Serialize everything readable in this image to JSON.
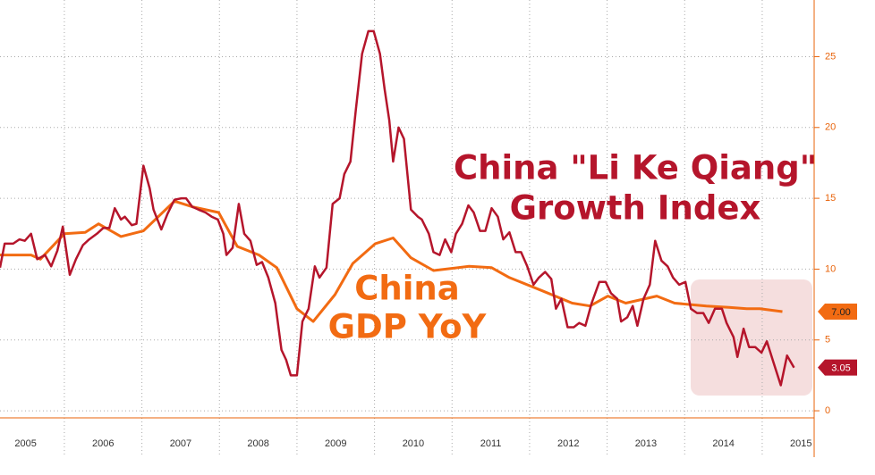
{
  "chart_data": {
    "type": "line",
    "xlim": [
      2005.17,
      2015.67
    ],
    "ylim": [
      -0.5,
      29
    ],
    "yticks": [
      0,
      5,
      10,
      15,
      20,
      25
    ],
    "xticks": [
      {
        "value": 2005.5,
        "label": "2005"
      },
      {
        "value": 2006.5,
        "label": "2006"
      },
      {
        "value": 2007.5,
        "label": "2007"
      },
      {
        "value": 2008.5,
        "label": "2008"
      },
      {
        "value": 2009.5,
        "label": "2009"
      },
      {
        "value": 2010.5,
        "label": "2010"
      },
      {
        "value": 2011.5,
        "label": "2011"
      },
      {
        "value": 2012.5,
        "label": "2012"
      },
      {
        "value": 2013.5,
        "label": "2013"
      },
      {
        "value": 2014.5,
        "label": "2014"
      },
      {
        "value": 2015.5,
        "label": "2015"
      }
    ],
    "grid": true,
    "series": [
      {
        "label": [
          "China \"Li Ke Qiang\"",
          "Growth Index"
        ],
        "color": "#b5152b",
        "last_value_label": "3.05",
        "x": [
          2005.17,
          2005.23,
          2005.34,
          2005.42,
          2005.49,
          2005.57,
          2005.65,
          2005.75,
          2005.83,
          2005.91,
          2005.98,
          2006.07,
          2006.15,
          2006.24,
          2006.32,
          2006.42,
          2006.5,
          2006.58,
          2006.65,
          2006.73,
          2006.78,
          2006.87,
          2006.93,
          2007.02,
          2007.1,
          2007.15,
          2007.25,
          2007.33,
          2007.42,
          2007.51,
          2007.57,
          2007.65,
          2007.73,
          2007.82,
          2007.9,
          2007.98,
          2008.05,
          2008.09,
          2008.17,
          2008.25,
          2008.32,
          2008.4,
          2008.48,
          2008.55,
          2008.63,
          2008.72,
          2008.8,
          2008.86,
          2008.92,
          2009.0,
          2009.07,
          2009.15,
          2009.23,
          2009.29,
          2009.38,
          2009.46,
          2009.55,
          2009.61,
          2009.69,
          2009.76,
          2009.84,
          2009.92,
          2009.99,
          2010.07,
          2010.13,
          2010.19,
          2010.24,
          2010.31,
          2010.38,
          2010.47,
          2010.56,
          2010.61,
          2010.7,
          2010.76,
          2010.84,
          2010.91,
          2010.99,
          2011.05,
          2011.13,
          2011.21,
          2011.28,
          2011.36,
          2011.43,
          2011.51,
          2011.59,
          2011.66,
          2011.74,
          2011.82,
          2011.89,
          2011.97,
          2012.05,
          2012.12,
          2012.2,
          2012.28,
          2012.34,
          2012.41,
          2012.49,
          2012.57,
          2012.64,
          2012.72,
          2012.8,
          2012.9,
          2012.98,
          2013.05,
          2013.13,
          2013.18,
          2013.26,
          2013.33,
          2013.39,
          2013.47,
          2013.55,
          2013.62,
          2013.7,
          2013.78,
          2013.85,
          2013.93,
          2014.01,
          2014.08,
          2014.16,
          2014.24,
          2014.31,
          2014.39,
          2014.48,
          2014.54,
          2014.63,
          2014.68,
          2014.76,
          2014.83,
          2014.91,
          2014.99,
          2015.06,
          2015.14,
          2015.24,
          2015.32,
          2015.41
        ],
        "values": [
          10.1,
          11.8,
          11.8,
          12.1,
          12.0,
          12.5,
          10.7,
          11.0,
          10.2,
          11.3,
          13.0,
          9.6,
          10.7,
          11.7,
          12.1,
          12.5,
          12.9,
          12.9,
          14.3,
          13.5,
          13.7,
          13.1,
          13.2,
          17.3,
          15.7,
          14.2,
          12.8,
          13.9,
          14.9,
          15.0,
          15.0,
          14.4,
          14.2,
          14.0,
          13.7,
          13.5,
          12.5,
          11.0,
          11.5,
          14.6,
          12.5,
          12.0,
          10.3,
          10.5,
          9.4,
          7.6,
          4.3,
          3.6,
          2.5,
          2.5,
          6.3,
          7.2,
          10.2,
          9.4,
          10.1,
          14.6,
          15.0,
          16.7,
          17.6,
          21.3,
          25.2,
          26.8,
          26.8,
          25.2,
          22.7,
          20.5,
          17.6,
          20.0,
          19.2,
          14.2,
          13.7,
          13.5,
          12.5,
          11.2,
          11.0,
          12.1,
          11.2,
          12.5,
          13.2,
          14.5,
          14.0,
          12.7,
          12.7,
          14.3,
          13.7,
          12.1,
          12.6,
          11.2,
          11.2,
          10.2,
          8.9,
          9.4,
          9.8,
          9.3,
          7.2,
          7.9,
          5.9,
          5.9,
          6.2,
          6.0,
          7.6,
          9.1,
          9.1,
          8.3,
          7.9,
          6.3,
          6.6,
          7.4,
          6.0,
          7.9,
          8.9,
          12.0,
          10.6,
          10.2,
          9.4,
          8.9,
          9.1,
          7.2,
          6.9,
          6.9,
          6.2,
          7.2,
          7.2,
          6.2,
          5.2,
          3.8,
          5.8,
          4.5,
          4.5,
          4.1,
          4.9,
          3.5,
          1.8,
          3.9,
          3.05
        ]
      },
      {
        "label": [
          "China",
          "GDP YoY"
        ],
        "color": "#f26b12",
        "last_value_label": "7.00",
        "x": [
          2005.17,
          2005.57,
          2005.69,
          2006.0,
          2006.27,
          2006.44,
          2006.73,
          2007.02,
          2007.42,
          2007.65,
          2007.99,
          2008.23,
          2008.51,
          2008.74,
          2009.0,
          2009.21,
          2009.49,
          2009.72,
          2010.01,
          2010.24,
          2010.47,
          2010.76,
          2011.22,
          2011.51,
          2011.74,
          2012.15,
          2012.55,
          2012.78,
          2013.01,
          2013.24,
          2013.64,
          2013.87,
          2014.28,
          2014.57,
          2014.8,
          2014.97,
          2015.26
        ],
        "values": [
          11.0,
          11.0,
          10.7,
          12.5,
          12.6,
          13.2,
          12.3,
          12.7,
          14.8,
          14.4,
          14.0,
          11.6,
          11.0,
          10.1,
          7.2,
          6.3,
          8.2,
          10.4,
          11.8,
          12.2,
          10.8,
          9.9,
          10.2,
          10.1,
          9.4,
          8.5,
          7.6,
          7.4,
          8.1,
          7.6,
          8.1,
          7.6,
          7.4,
          7.3,
          7.2,
          7.2,
          7.0
        ]
      }
    ]
  }
}
